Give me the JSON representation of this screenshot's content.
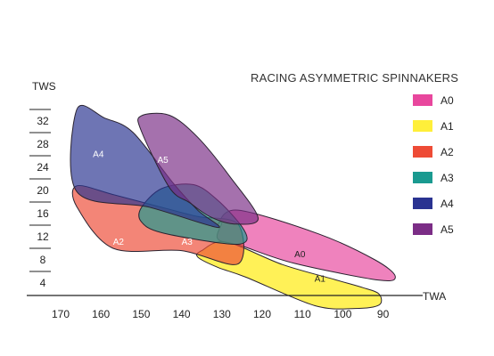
{
  "chart_data": {
    "type": "area",
    "title": "RACING ASYMMETRIC SPINNAKERS",
    "xlabel": "TWA",
    "ylabel": "TWS",
    "xlim": [
      175,
      85
    ],
    "ylim": [
      0,
      36
    ],
    "x_ticks": [
      170,
      160,
      150,
      140,
      130,
      120,
      110,
      100,
      90
    ],
    "y_ticks": [
      4,
      8,
      12,
      16,
      20,
      24,
      28,
      32
    ],
    "legend_position": "right",
    "series": [
      {
        "name": "A0",
        "color": "#e8479d",
        "label": "A0",
        "label_at": [
          112,
          8.5
        ],
        "polygon": [
          [
            130,
            14.4
          ],
          [
            131,
            14.2
          ],
          [
            126,
            16.6
          ],
          [
            106,
            12.5
          ],
          [
            92,
            8.0
          ],
          [
            87,
            5.2
          ],
          [
            91,
            4.5
          ],
          [
            112,
            7.4
          ],
          [
            125,
            10.4
          ],
          [
            131,
            11.6
          ]
        ]
      },
      {
        "name": "A1",
        "color": "#ffef3a",
        "label": "A1",
        "label_at": [
          107,
          4.2
        ],
        "polygon": [
          [
            135,
            9.6
          ],
          [
            129,
            11.1
          ],
          [
            115,
            7.2
          ],
          [
            102,
            4.6
          ],
          [
            95,
            3.2
          ],
          [
            91,
            2.1
          ],
          [
            91,
            0.2
          ],
          [
            97,
            -0.4
          ],
          [
            107,
            0.1
          ],
          [
            124,
            5.0
          ],
          [
            131,
            6.7
          ],
          [
            136,
            8.5
          ]
        ]
      },
      {
        "name": "A2",
        "color": "#ee4b36",
        "label": "A2",
        "label_at": [
          157,
          10.6
        ],
        "polygon": [
          [
            166,
            20.8
          ],
          [
            157,
            19.3
          ],
          [
            145,
            17.1
          ],
          [
            136,
            15.5
          ],
          [
            126,
            14.2
          ],
          [
            126,
            7.3
          ],
          [
            140,
            9.6
          ],
          [
            157,
            10.0
          ],
          [
            166,
            17.2
          ]
        ]
      },
      {
        "name": "A3",
        "color": "#1a9a90",
        "label": "A3",
        "label_at": [
          140,
          10.6
        ],
        "polygon": [
          [
            150,
            17.0
          ],
          [
            145,
            20.3
          ],
          [
            137,
            21.0
          ],
          [
            131,
            18.3
          ],
          [
            125,
            13.7
          ],
          [
            124,
            11.2
          ],
          [
            129,
            10.8
          ],
          [
            145,
            12.7
          ],
          [
            150,
            14.6
          ]
        ]
      },
      {
        "name": "A4",
        "color": "#2a3391",
        "label": "A4",
        "label_at": [
          162,
          25.8
        ],
        "polygon": [
          [
            166,
            34.0
          ],
          [
            159,
            32.5
          ],
          [
            152,
            30.0
          ],
          [
            142,
            21.2
          ],
          [
            136,
            16.6
          ],
          [
            131,
            13.6
          ],
          [
            148,
            17.1
          ],
          [
            166,
            19.8
          ]
        ]
      },
      {
        "name": "A5",
        "color": "#7b2d86",
        "label": "A5",
        "label_at": [
          146,
          24.8
        ],
        "polygon": [
          [
            150,
            32.9
          ],
          [
            143,
            33.0
          ],
          [
            136,
            29.2
          ],
          [
            128,
            22.4
          ],
          [
            121,
            15.2
          ],
          [
            127,
            14.2
          ],
          [
            133,
            15.5
          ],
          [
            138,
            17.9
          ],
          [
            143,
            20.5
          ],
          [
            150,
            30.3
          ]
        ]
      }
    ]
  }
}
